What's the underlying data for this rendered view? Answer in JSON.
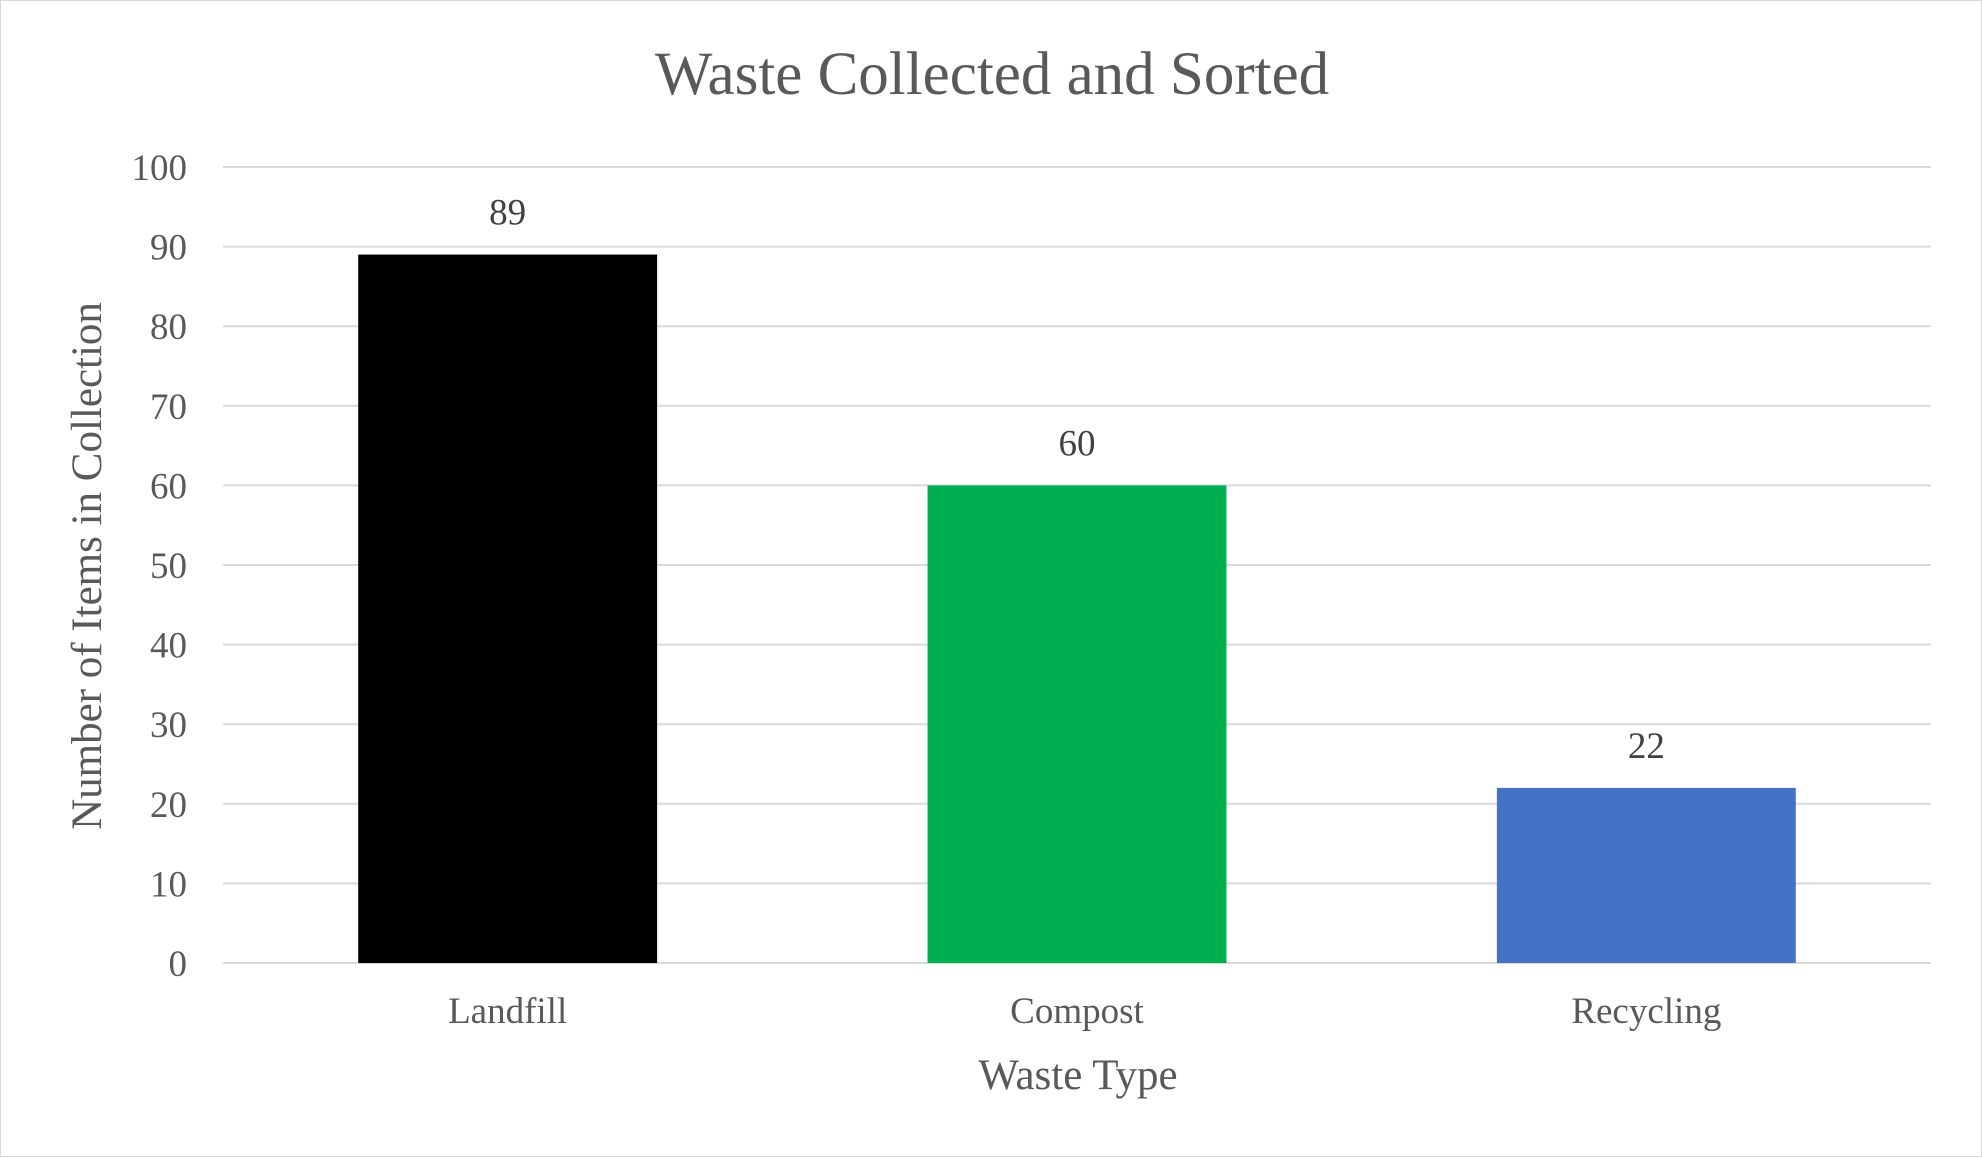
{
  "chart_data": {
    "type": "bar",
    "title": "Waste Collected and Sorted",
    "xlabel": "Waste Type",
    "ylabel": "Number of Items in Collection",
    "categories": [
      "Landfill",
      "Compost",
      "Recycling"
    ],
    "values": [
      89,
      60,
      22
    ],
    "data_labels": [
      "89",
      "60",
      "22"
    ],
    "bar_colors": [
      "#000000",
      "#00b050",
      "#4472c4"
    ],
    "ylim": [
      0,
      100
    ],
    "yticks": [
      0,
      10,
      20,
      30,
      40,
      50,
      60,
      70,
      80,
      90,
      100
    ],
    "ytick_labels": [
      "0",
      "10",
      "20",
      "30",
      "40",
      "50",
      "60",
      "70",
      "80",
      "90",
      "100"
    ],
    "grid": true,
    "legend": "none"
  }
}
